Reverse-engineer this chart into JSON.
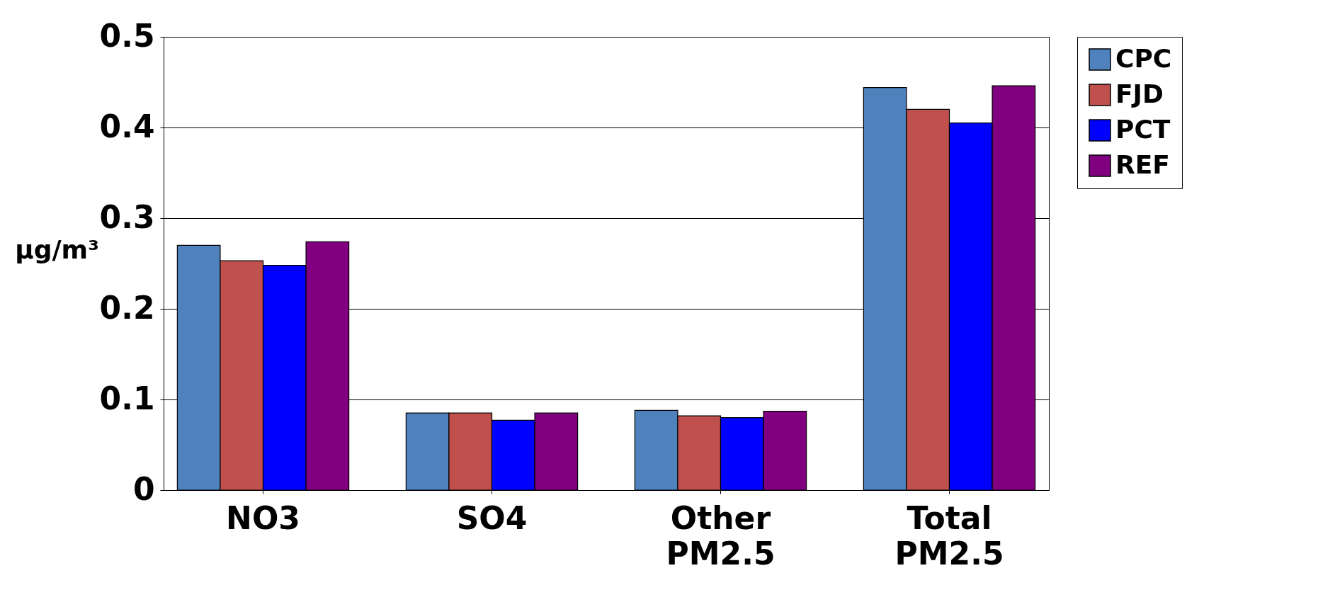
{
  "chart_data": {
    "type": "bar",
    "ylabel": "µg/m³",
    "categories": [
      "NO3",
      "SO4",
      "Other PM2.5",
      "Total PM2.5"
    ],
    "series": [
      {
        "name": "CPC",
        "color": "#4f81bd",
        "values": [
          0.27,
          0.085,
          0.088,
          0.444
        ]
      },
      {
        "name": "FJD",
        "color": "#c0504d",
        "values": [
          0.253,
          0.085,
          0.082,
          0.42
        ]
      },
      {
        "name": "PCT",
        "color": "#0000ff",
        "values": [
          0.248,
          0.077,
          0.08,
          0.405
        ]
      },
      {
        "name": "REF",
        "color": "#800080",
        "values": [
          0.274,
          0.085,
          0.087,
          0.446
        ]
      }
    ],
    "ylim": [
      0,
      0.5
    ],
    "yticks": [
      0,
      0.1,
      0.2,
      0.3,
      0.4,
      0.5
    ],
    "grid": "y",
    "legend": "right"
  }
}
